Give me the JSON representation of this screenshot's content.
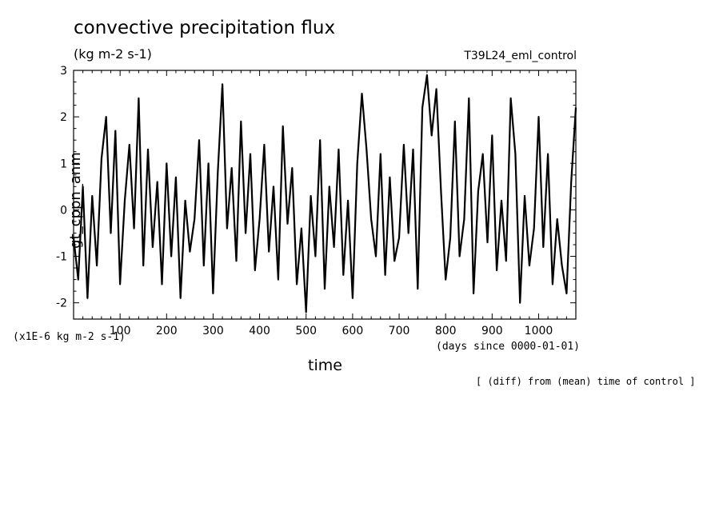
{
  "chart_data": {
    "type": "line",
    "title": "convective precipitation flux",
    "units_label": "(kg m-2 s-1)",
    "run_label": "T39L24_eml_control",
    "ylabel": "gt_cppn_anm",
    "xlabel": "time",
    "x_units_label": "(days since 0000-01-01)",
    "y_scale_label": "(x1E-6 kg m-2 s-1)",
    "note": "[ (diff) from (mean) time of control ]",
    "xlim": [
      0,
      1080
    ],
    "ylim": [
      -2.35,
      3.0
    ],
    "x_ticks": [
      100,
      200,
      300,
      400,
      500,
      600,
      700,
      800,
      900,
      1000
    ],
    "y_ticks": [
      -2,
      -1,
      0,
      1,
      2,
      3
    ],
    "grid": false,
    "series": [
      {
        "x": [
          0,
          10,
          20,
          30,
          40,
          50,
          60,
          70,
          80,
          90,
          100,
          110,
          120,
          130,
          140,
          150,
          160,
          170,
          180,
          190,
          200,
          210,
          220,
          230,
          240,
          250,
          260,
          270,
          280,
          290,
          300,
          310,
          320,
          330,
          340,
          350,
          360,
          370,
          380,
          390,
          400,
          410,
          420,
          430,
          440,
          450,
          460,
          470,
          480,
          490,
          500,
          510,
          520,
          530,
          540,
          550,
          560,
          570,
          580,
          590,
          600,
          610,
          620,
          630,
          640,
          650,
          660,
          670,
          680,
          690,
          700,
          710,
          720,
          730,
          740,
          750,
          760,
          770,
          780,
          790,
          800,
          810,
          820,
          830,
          840,
          850,
          860,
          870,
          880,
          890,
          900,
          910,
          920,
          930,
          940,
          950,
          960,
          970,
          980,
          990,
          1000,
          1010,
          1020,
          1030,
          1040,
          1050,
          1060,
          1070,
          1080
        ],
        "values": [
          -0.6,
          -1.5,
          0.5,
          -1.9,
          0.3,
          -1.2,
          1.1,
          2.0,
          -0.5,
          1.7,
          -1.6,
          0.2,
          1.4,
          -0.4,
          2.4,
          -1.2,
          1.3,
          -0.8,
          0.6,
          -1.6,
          1.0,
          -1.0,
          0.7,
          -1.9,
          0.2,
          -0.9,
          -0.2,
          1.5,
          -1.2,
          1.0,
          -1.8,
          0.8,
          2.7,
          -0.4,
          0.9,
          -1.1,
          1.9,
          -0.5,
          1.2,
          -1.3,
          -0.2,
          1.4,
          -0.9,
          0.5,
          -1.5,
          1.8,
          -0.3,
          0.9,
          -1.6,
          -0.4,
          -2.2,
          0.3,
          -1.0,
          1.5,
          -1.7,
          0.5,
          -0.8,
          1.3,
          -1.4,
          0.2,
          -1.9,
          1.0,
          2.5,
          1.3,
          -0.2,
          -1.0,
          1.2,
          -1.4,
          0.7,
          -1.1,
          -0.6,
          1.4,
          -0.5,
          1.3,
          -1.7,
          2.2,
          2.9,
          1.6,
          2.6,
          0.4,
          -1.5,
          -0.6,
          1.9,
          -1.0,
          -0.2,
          2.4,
          -1.8,
          0.4,
          1.2,
          -0.7,
          1.6,
          -1.3,
          0.2,
          -1.1,
          2.4,
          1.2,
          -2.0,
          0.3,
          -1.2,
          -0.4,
          2.0,
          -0.8,
          1.2,
          -1.6,
          -0.2,
          -1.2,
          -1.8,
          0.6,
          2.2
        ]
      }
    ]
  }
}
